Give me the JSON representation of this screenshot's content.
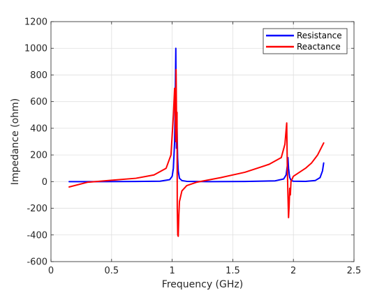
{
  "chart_data": {
    "type": "line",
    "title": "",
    "xlabel": "Frequency (GHz)",
    "ylabel": "Impedance (ohm)",
    "xlim": [
      0,
      2.5
    ],
    "ylim": [
      -600,
      1200
    ],
    "xticks": [
      0,
      0.5,
      1,
      1.5,
      2,
      2.5
    ],
    "xtick_labels": [
      "0",
      "0.5",
      "1",
      "1.5",
      "2",
      "2.5"
    ],
    "yticks": [
      -600,
      -400,
      -200,
      0,
      200,
      400,
      600,
      800,
      1000,
      1200
    ],
    "ytick_labels": [
      "-600",
      "-400",
      "-200",
      "0",
      "200",
      "400",
      "600",
      "800",
      "1000",
      "1200"
    ],
    "grid": true,
    "legend": "top-right",
    "series": [
      {
        "name": "Resistance",
        "color": "#0000ff",
        "x": [
          0.15,
          0.4,
          0.7,
          0.9,
          0.98,
          1.0,
          1.01,
          1.02,
          1.025,
          1.03,
          1.035,
          1.04,
          1.045,
          1.05,
          1.06,
          1.08,
          1.12,
          1.3,
          1.6,
          1.85,
          1.92,
          1.94,
          1.95,
          1.955,
          1.96,
          1.965,
          1.97,
          1.98,
          2.0,
          2.1,
          2.18,
          2.22,
          2.24,
          2.25
        ],
        "y": [
          0,
          0,
          1,
          3,
          15,
          40,
          100,
          300,
          600,
          1000,
          250,
          400,
          180,
          80,
          25,
          8,
          2,
          0,
          1,
          6,
          20,
          50,
          120,
          180,
          100,
          60,
          30,
          10,
          3,
          2,
          8,
          30,
          80,
          140
        ]
      },
      {
        "name": "Reactance",
        "color": "#ff0000",
        "x": [
          0.15,
          0.3,
          0.5,
          0.7,
          0.85,
          0.95,
          0.99,
          1.01,
          1.02,
          1.03,
          1.032,
          1.036,
          1.04,
          1.042,
          1.046,
          1.05,
          1.055,
          1.06,
          1.08,
          1.12,
          1.2,
          1.4,
          1.6,
          1.8,
          1.9,
          1.93,
          1.945,
          1.95,
          1.955,
          1.96,
          1.965,
          1.97,
          1.975,
          1.98,
          1.99,
          2.0,
          2.05,
          2.1,
          2.15,
          2.2,
          2.25
        ],
        "y": [
          -40,
          -5,
          10,
          25,
          50,
          100,
          200,
          500,
          700,
          300,
          840,
          460,
          520,
          -200,
          -400,
          -410,
          -250,
          -150,
          -70,
          -30,
          -5,
          30,
          70,
          130,
          180,
          280,
          440,
          100,
          -100,
          -270,
          -180,
          -50,
          -100,
          0,
          20,
          40,
          70,
          100,
          140,
          200,
          290
        ]
      }
    ]
  }
}
